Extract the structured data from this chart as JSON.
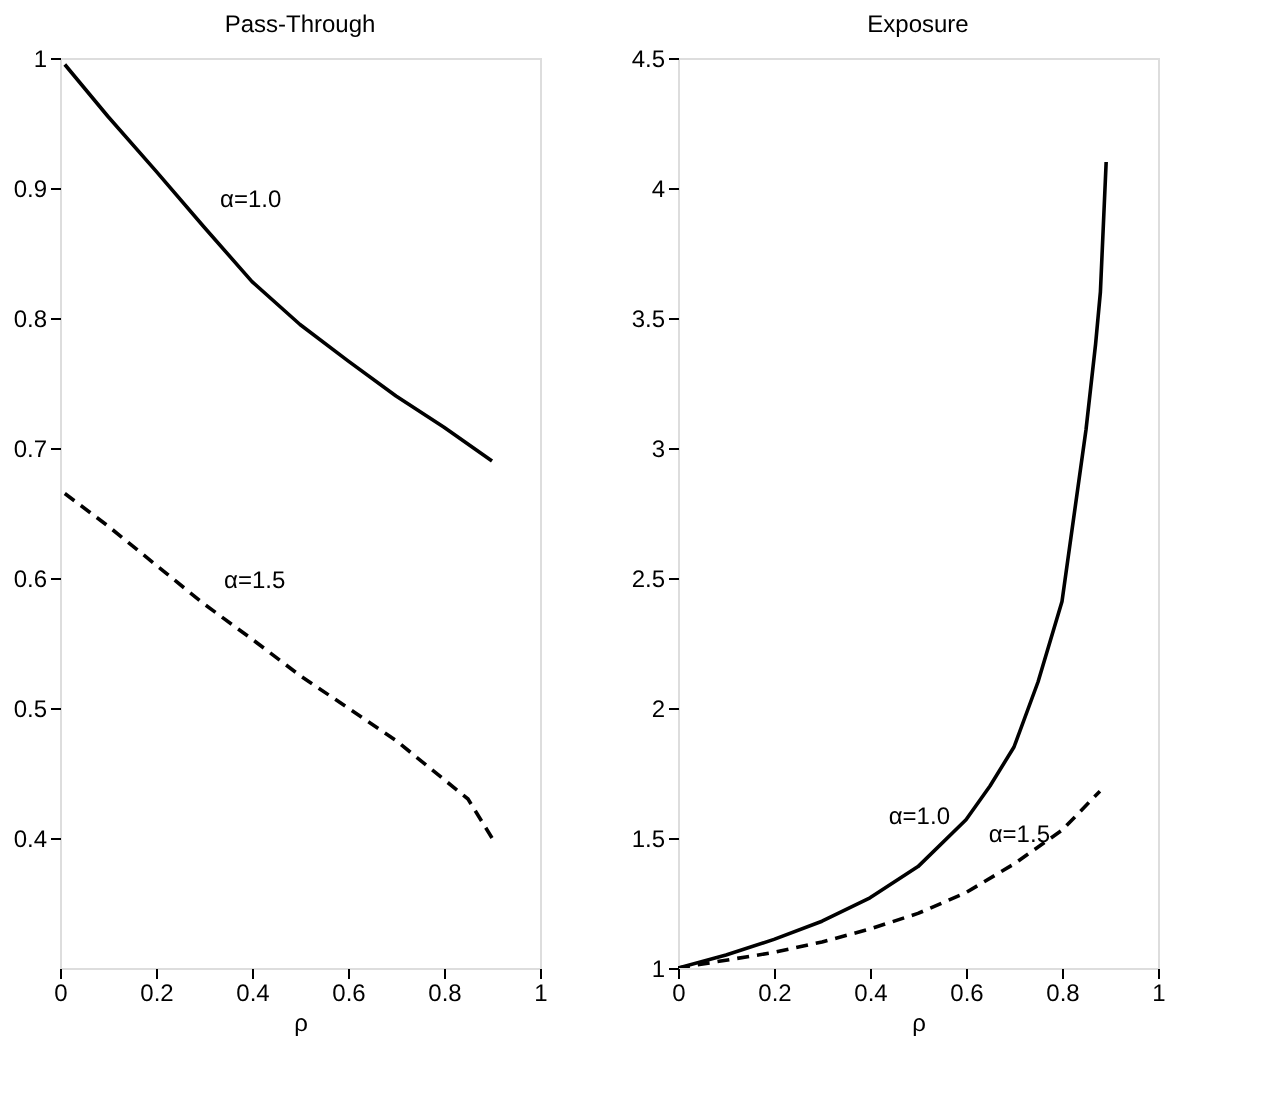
{
  "chart_data": [
    {
      "type": "line",
      "title": "Pass-Through",
      "xlabel": "ρ",
      "xlim": [
        0,
        1
      ],
      "xticks": [
        0,
        0.2,
        0.4,
        0.6,
        0.8,
        1
      ],
      "ylim": [
        0.3,
        1
      ],
      "yticks": [
        0.4,
        0.5,
        0.6,
        0.7,
        0.8,
        0.9,
        1
      ],
      "grid": false,
      "series": [
        {
          "color": "#000000",
          "line_style": "solid",
          "x": [
            0.01,
            0.1,
            0.2,
            0.3,
            0.4,
            0.5,
            0.6,
            0.7,
            0.8,
            0.9
          ],
          "values": [
            0.995,
            0.955,
            0.913,
            0.87,
            0.828,
            0.795,
            0.767,
            0.74,
            0.716,
            0.69
          ]
        },
        {
          "color": "#000000",
          "line_style": "dashed",
          "x": [
            0.01,
            0.1,
            0.2,
            0.3,
            0.4,
            0.5,
            0.6,
            0.7,
            0.8,
            0.85,
            0.9
          ],
          "values": [
            0.665,
            0.64,
            0.61,
            0.58,
            0.553,
            0.525,
            0.5,
            0.475,
            0.445,
            0.43,
            0.4
          ]
        }
      ],
      "annotations": [
        "α=1.0",
        "α=1.5"
      ]
    },
    {
      "type": "line",
      "title": "Exposure",
      "xlabel": "ρ",
      "xlim": [
        0,
        1
      ],
      "xticks": [
        0,
        0.2,
        0.4,
        0.6,
        0.8,
        1
      ],
      "ylim": [
        1,
        4.5
      ],
      "yticks": [
        1,
        1.5,
        2,
        2.5,
        3,
        3.5,
        4,
        4.5
      ],
      "grid": false,
      "series": [
        {
          "color": "#000000",
          "line_style": "solid",
          "x": [
            0,
            0.1,
            0.2,
            0.3,
            0.4,
            0.5,
            0.6,
            0.65,
            0.7,
            0.75,
            0.8,
            0.85,
            0.87,
            0.88,
            0.892
          ],
          "values": [
            1.0,
            1.05,
            1.11,
            1.18,
            1.27,
            1.39,
            1.57,
            1.7,
            1.85,
            2.1,
            2.41,
            3.07,
            3.4,
            3.6,
            4.1
          ]
        },
        {
          "color": "#000000",
          "line_style": "dashed",
          "x": [
            0,
            0.1,
            0.2,
            0.3,
            0.4,
            0.5,
            0.6,
            0.7,
            0.8,
            0.879
          ],
          "values": [
            1.0,
            1.03,
            1.06,
            1.1,
            1.15,
            1.21,
            1.29,
            1.4,
            1.53,
            1.68
          ]
        }
      ],
      "annotations": [
        "α=1.0",
        "α=1.5"
      ]
    }
  ]
}
